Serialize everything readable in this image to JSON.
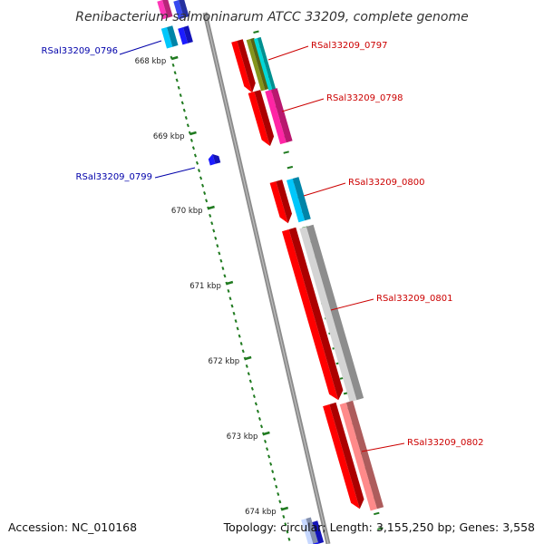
{
  "title": "Renibacterium salmoninarum ATCC 33209, complete genome",
  "footer": {
    "accession": "Accession: NC_010168",
    "topology": "Topology: circular; Length: 3,155,250 bp; Genes: 3,558"
  },
  "colors": {
    "label_forward": "#cc0000",
    "label_reverse": "#0000aa",
    "backbone": "#8c8c8c",
    "tick": "#1f7a1f"
  },
  "scale_marks": [
    "668 kbp",
    "669 kbp",
    "670 kbp",
    "671 kbp",
    "672 kbp",
    "673 kbp",
    "674 kbp"
  ],
  "gene_labels": [
    {
      "text": "RSal33209_0796",
      "strand": "reverse"
    },
    {
      "text": "RSal33209_0797",
      "strand": "forward"
    },
    {
      "text": "RSal33209_0798",
      "strand": "forward"
    },
    {
      "text": "RSal33209_0799",
      "strand": "reverse"
    },
    {
      "text": "RSal33209_0800",
      "strand": "forward"
    },
    {
      "text": "RSal33209_0801",
      "strand": "forward"
    },
    {
      "text": "RSal33209_0802",
      "strand": "forward"
    }
  ]
}
